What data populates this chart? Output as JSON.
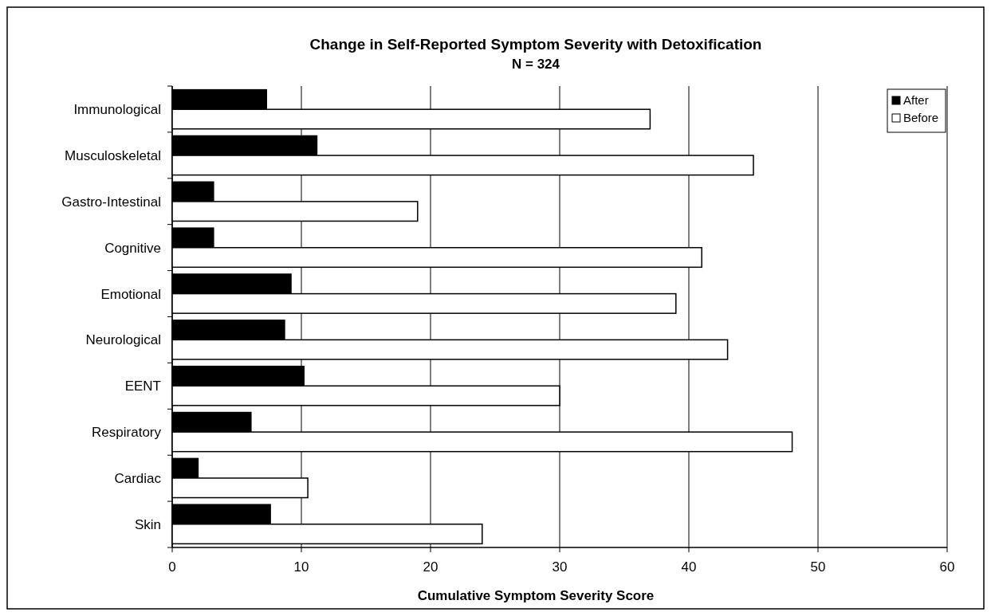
{
  "chart_data": {
    "type": "bar",
    "orientation": "horizontal",
    "title": "Change in Self-Reported Symptom Severity with Detoxification",
    "subtitle": "N = 324",
    "xlabel": "Cumulative Symptom Severity Score",
    "categories": [
      "Immunological",
      "Musculoskeletal",
      "Gastro-Intestinal",
      "Cognitive",
      "Emotional",
      "Neurological",
      "EENT",
      "Respiratory",
      "Cardiac",
      "Skin"
    ],
    "series": [
      {
        "name": "After",
        "color": "#000000",
        "values": [
          7.3,
          11.2,
          3.2,
          3.2,
          9.2,
          8.7,
          10.2,
          6.1,
          2,
          7.6
        ]
      },
      {
        "name": "Before",
        "color": "#ffffff",
        "values": [
          37,
          45,
          19,
          41,
          39,
          43,
          30,
          48,
          10.5,
          24
        ]
      }
    ],
    "xlim": [
      0,
      60
    ],
    "xticks": [
      0,
      10,
      20,
      30,
      40,
      50,
      60
    ],
    "grid": "x",
    "legend": "top right"
  }
}
